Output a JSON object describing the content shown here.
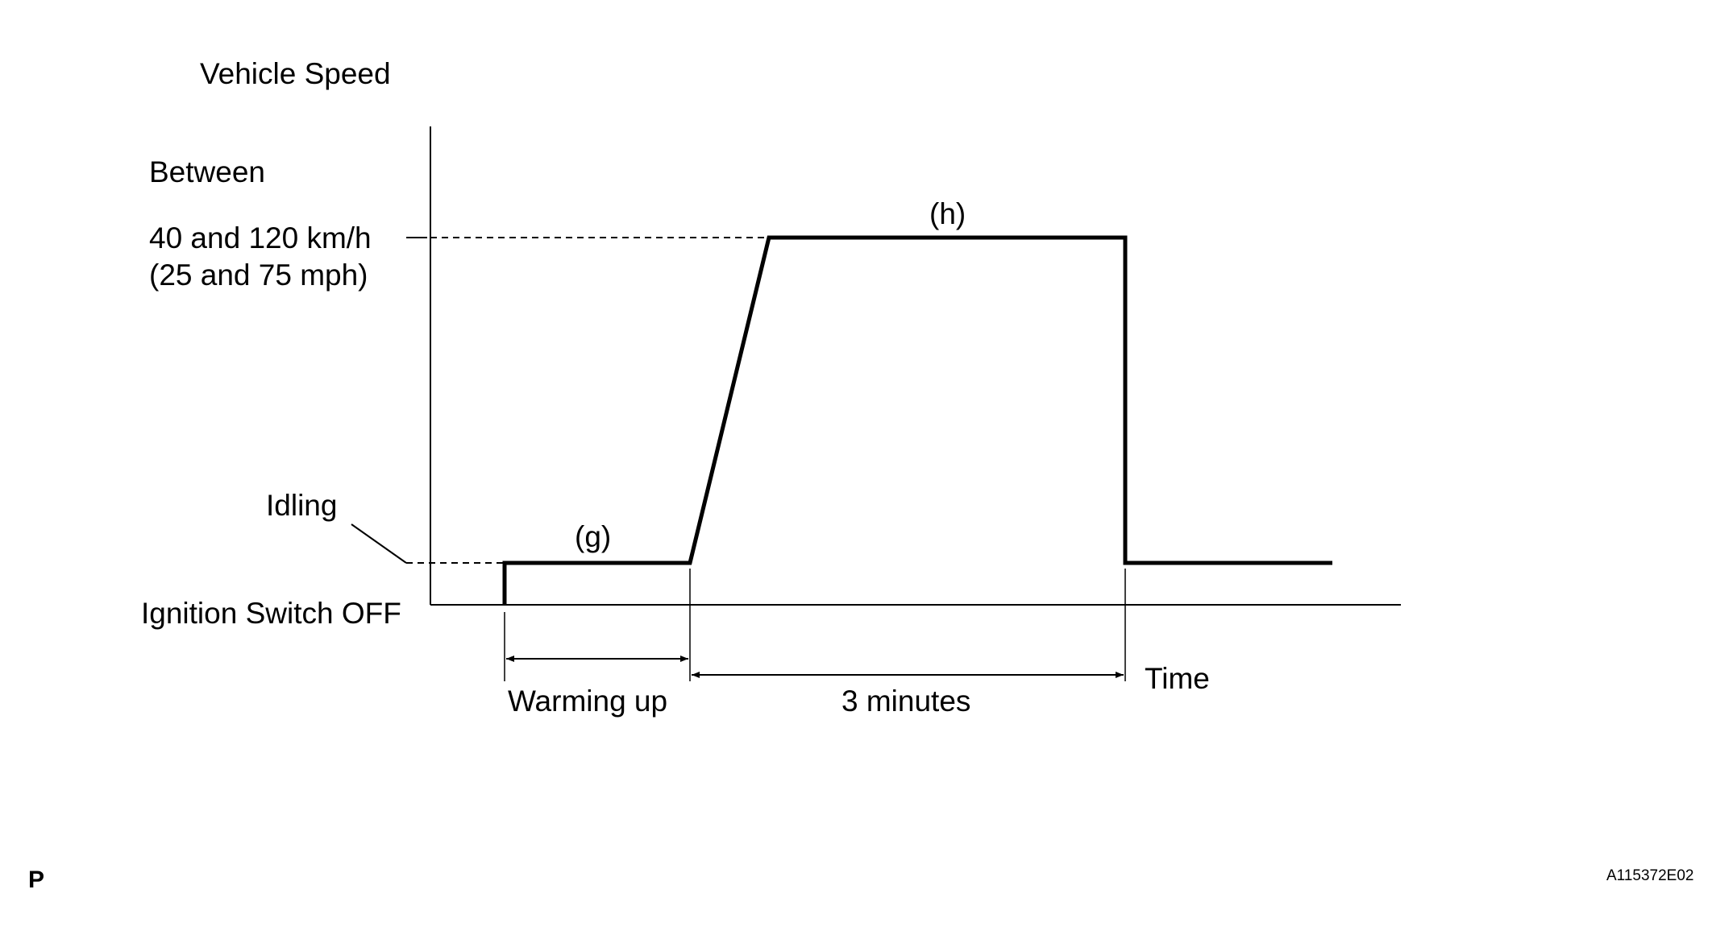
{
  "diagram": {
    "y_axis_label": "Vehicle Speed",
    "x_axis_label": "Time",
    "speed_label_line1": "Between",
    "speed_label_line2": "40 and 120 km/h",
    "speed_label_line3": "(25 and 75 mph)",
    "idling_label": "Idling",
    "ignition_label": "Ignition Switch OFF",
    "phase_g_label": "(g)",
    "phase_h_label": "(h)",
    "warming_label": "Warming up",
    "duration_label": "3 minutes",
    "corner_left": "P",
    "corner_right": "A115372E02"
  }
}
